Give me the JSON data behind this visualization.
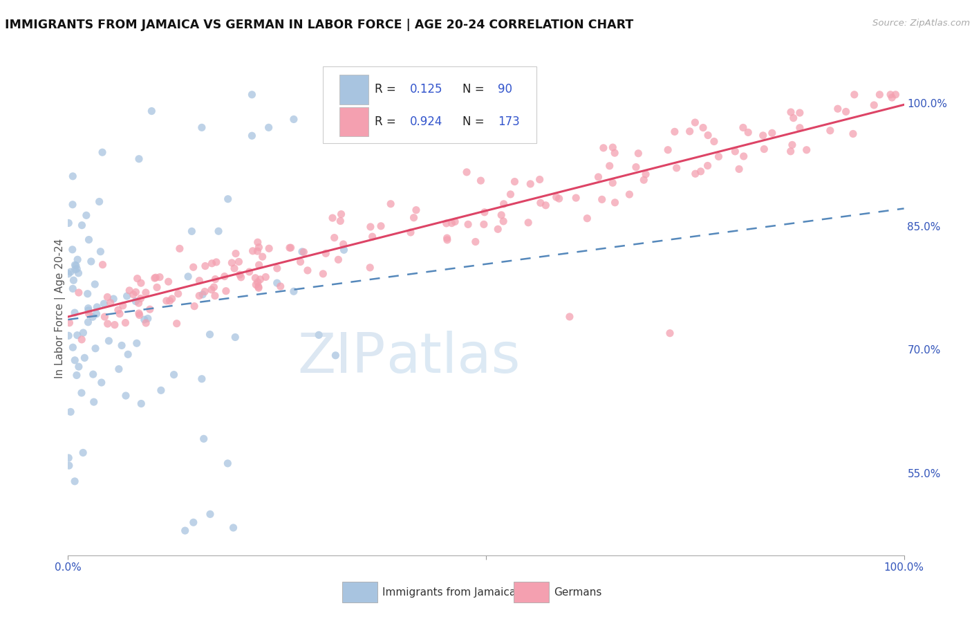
{
  "title": "IMMIGRANTS FROM JAMAICA VS GERMAN IN LABOR FORCE | AGE 20-24 CORRELATION CHART",
  "source": "Source: ZipAtlas.com",
  "ylabel": "In Labor Force | Age 20-24",
  "xlim": [
    0.0,
    1.0
  ],
  "ylim": [
    0.45,
    1.05
  ],
  "y_tick_labels_right": [
    "55.0%",
    "70.0%",
    "85.0%",
    "100.0%"
  ],
  "y_tick_values_right": [
    0.55,
    0.7,
    0.85,
    1.0
  ],
  "jamaica_color": "#a8c4e0",
  "german_color": "#f4a0b0",
  "jamaica_line_color": "#5588bb",
  "german_line_color": "#dd4466",
  "r_jamaica": 0.125,
  "n_jamaica": 90,
  "r_german": 0.924,
  "n_german": 173,
  "legend_jamaica": "Immigrants from Jamaica",
  "legend_german": "Germans",
  "background_color": "#ffffff",
  "grid_color": "#dddddd"
}
